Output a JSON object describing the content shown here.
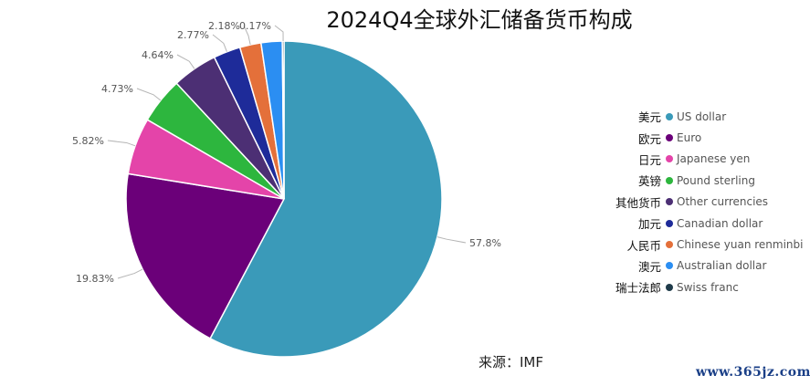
{
  "title": "2024Q4全球外汇储备货币构成",
  "source": "来源：IMF",
  "watermark": "www.365jz.com",
  "chart_data": {
    "type": "pie",
    "title": "2024Q4全球外汇储备货币构成",
    "slices": [
      {
        "name": "US dollar",
        "cn": "美元",
        "value": 57.8,
        "label": "57.8%",
        "color": "#3a9ab9"
      },
      {
        "name": "Euro",
        "cn": "欧元",
        "value": 19.83,
        "label": "19.83%",
        "color": "#6b0079"
      },
      {
        "name": "Japanese yen",
        "cn": "日元",
        "value": 5.82,
        "label": "5.82%",
        "color": "#e444a9"
      },
      {
        "name": "Pound sterling",
        "cn": "英镑",
        "value": 4.73,
        "label": "4.73%",
        "color": "#2db63e"
      },
      {
        "name": "Other currencies",
        "cn": "其他货币",
        "value": 4.64,
        "label": "4.64%",
        "color": "#4c2f74"
      },
      {
        "name": "Canadian dollar",
        "cn": "加元",
        "value": 2.77,
        "label": "2.77%",
        "color": "#1e2b99"
      },
      {
        "name": "Chinese yuan renminbi",
        "cn": "人民币",
        "value": 2.18,
        "label": "2.18%",
        "color": "#e4703a"
      },
      {
        "name": "Australian dollar",
        "cn": "澳元",
        "value": 2.16,
        "label": "",
        "color": "#2b8ef2"
      },
      {
        "name": "Swiss franc",
        "cn": "瑞士法郎",
        "value": 0.17,
        "label": "0.17%",
        "color": "#1f3b4a"
      }
    ],
    "legend_position": "right"
  }
}
